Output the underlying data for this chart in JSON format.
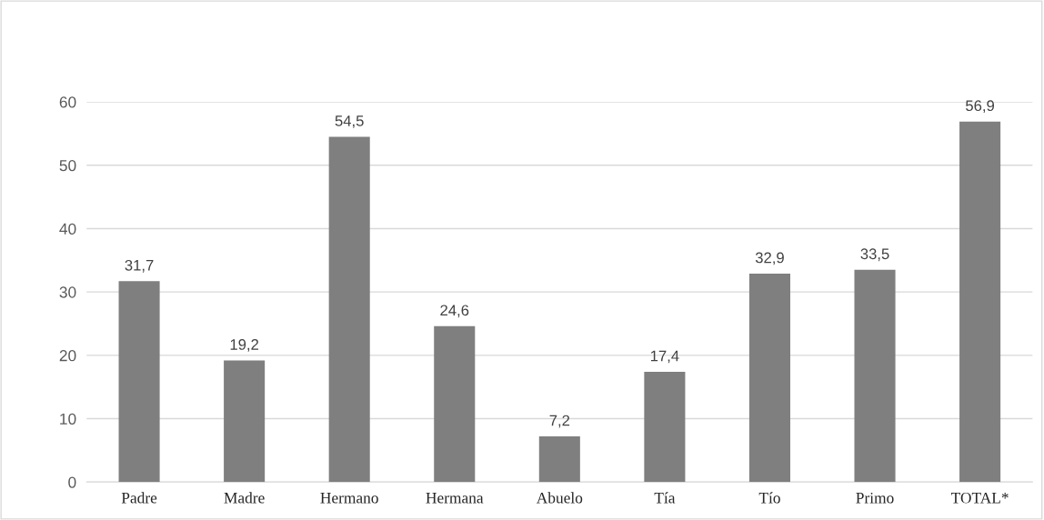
{
  "chart_data": {
    "type": "bar",
    "categories": [
      "Padre",
      "Madre",
      "Hermano",
      "Hermana",
      "Abuelo",
      "Tía",
      "Tío",
      "Primo",
      "TOTAL*"
    ],
    "values": [
      31.7,
      19.2,
      54.5,
      24.6,
      7.2,
      17.4,
      32.9,
      33.5,
      56.9
    ],
    "value_labels": [
      "31,7",
      "19,2",
      "54,5",
      "24,6",
      "7,2",
      "17,4",
      "32,9",
      "33,5",
      "56,9"
    ],
    "color": "#7f7f7f",
    "ylim": [
      0,
      60
    ],
    "yticks": [
      0,
      10,
      20,
      30,
      40,
      50,
      60
    ],
    "grid": "y",
    "legend": false
  }
}
